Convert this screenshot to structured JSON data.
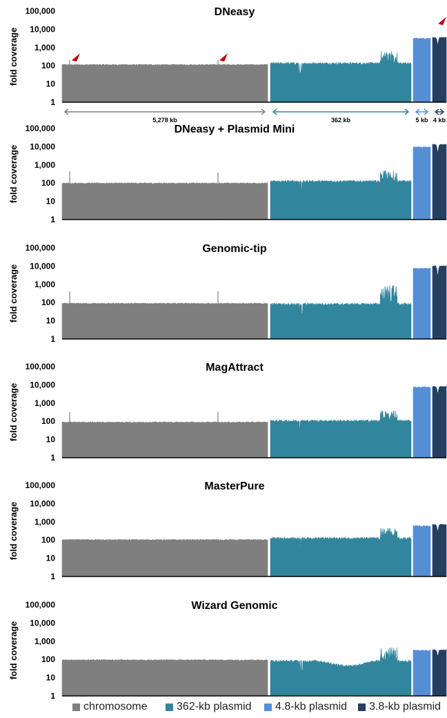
{
  "legend": [
    {
      "label": "chromosome",
      "color": "#7f7f7f"
    },
    {
      "label": "362-kb plasmid",
      "color": "#31859c"
    },
    {
      "label": "4.8-kb plasmid",
      "color": "#558ed5"
    },
    {
      "label": "3.8-kb plasmid",
      "color": "#243f60"
    }
  ],
  "chart_data": [
    {
      "type": "area",
      "title": "DNeasy",
      "ylabel": "fold coverage",
      "yscale": "log",
      "ylim": [
        1,
        100000
      ],
      "yticks": [
        "1",
        "10",
        "100",
        "1,000",
        "10,000",
        "100,000"
      ],
      "replicon_lengths_kb": [
        "5,278 kb",
        "362 kb",
        "5 kb",
        "4 kb"
      ],
      "markers": "red arrowheads indicating coverage spikes",
      "series": [
        {
          "name": "chromosome",
          "baseline": 115,
          "spikes": [
            200,
            210
          ]
        },
        {
          "name": "362-kb plasmid",
          "baseline": 140,
          "max": 650
        },
        {
          "name": "4.8-kb plasmid",
          "baseline": 3200
        },
        {
          "name": "3.8-kb plasmid",
          "baseline": 3500,
          "min": 1500
        }
      ]
    },
    {
      "type": "area",
      "title": "DNeasy + Plasmid Mini",
      "ylabel": "fold coverage",
      "yscale": "log",
      "ylim": [
        1,
        100000
      ],
      "yticks": [
        "1",
        "10",
        "100",
        "1,000",
        "10,000",
        "100,000"
      ],
      "series": [
        {
          "name": "chromosome",
          "baseline": 100,
          "spikes": [
            450,
            380
          ]
        },
        {
          "name": "362-kb plasmid",
          "baseline": 130,
          "max": 500
        },
        {
          "name": "4.8-kb plasmid",
          "baseline": 9500
        },
        {
          "name": "3.8-kb plasmid",
          "baseline": 13000,
          "min": 5000
        }
      ]
    },
    {
      "type": "area",
      "title": "Genomic-tip",
      "ylabel": "fold coverage",
      "yscale": "log",
      "ylim": [
        1,
        100000
      ],
      "yticks": [
        "1",
        "10",
        "100",
        "1,000",
        "10,000",
        "100,000"
      ],
      "series": [
        {
          "name": "chromosome",
          "baseline": 90,
          "spikes": [
            400,
            420
          ]
        },
        {
          "name": "362-kb plasmid",
          "baseline": 85,
          "max": 900
        },
        {
          "name": "4.8-kb plasmid",
          "baseline": 7500
        },
        {
          "name": "3.8-kb plasmid",
          "baseline": 10000,
          "min": 3000
        }
      ]
    },
    {
      "type": "area",
      "title": "MagAttract",
      "ylabel": "fold coverage",
      "yscale": "log",
      "ylim": [
        1,
        100000
      ],
      "yticks": [
        "1",
        "10",
        "100",
        "1,000",
        "10,000",
        "100,000"
      ],
      "series": [
        {
          "name": "chromosome",
          "baseline": 90,
          "spikes": [
            320,
            330
          ]
        },
        {
          "name": "362-kb plasmid",
          "baseline": 110,
          "max": 380
        },
        {
          "name": "4.8-kb plasmid",
          "baseline": 7500
        },
        {
          "name": "3.8-kb plasmid",
          "baseline": 8000,
          "min": 3500
        }
      ]
    },
    {
      "type": "area",
      "title": "MasterPure",
      "ylabel": "fold coverage",
      "yscale": "log",
      "ylim": [
        1,
        100000
      ],
      "yticks": [
        "1",
        "10",
        "100",
        "1,000",
        "10,000",
        "100,000"
      ],
      "series": [
        {
          "name": "chromosome",
          "baseline": 105,
          "spikes": []
        },
        {
          "name": "362-kb plasmid",
          "baseline": 130,
          "max": 450
        },
        {
          "name": "4.8-kb plasmid",
          "baseline": 600
        },
        {
          "name": "3.8-kb plasmid",
          "baseline": 700,
          "min": 300
        }
      ]
    },
    {
      "type": "area",
      "title": "Wizard Genomic",
      "ylabel": "fold coverage",
      "yscale": "log",
      "ylim": [
        1,
        100000
      ],
      "yticks": [
        "1",
        "10",
        "100",
        "1,000",
        "10,000",
        "100,000"
      ],
      "series": [
        {
          "name": "chromosome",
          "baseline": 95,
          "spikes": []
        },
        {
          "name": "362-kb plasmid",
          "baseline": 85,
          "max": 450
        },
        {
          "name": "4.8-kb plasmid",
          "baseline": 320
        },
        {
          "name": "3.8-kb plasmid",
          "baseline": 330,
          "min": 160
        }
      ]
    }
  ]
}
